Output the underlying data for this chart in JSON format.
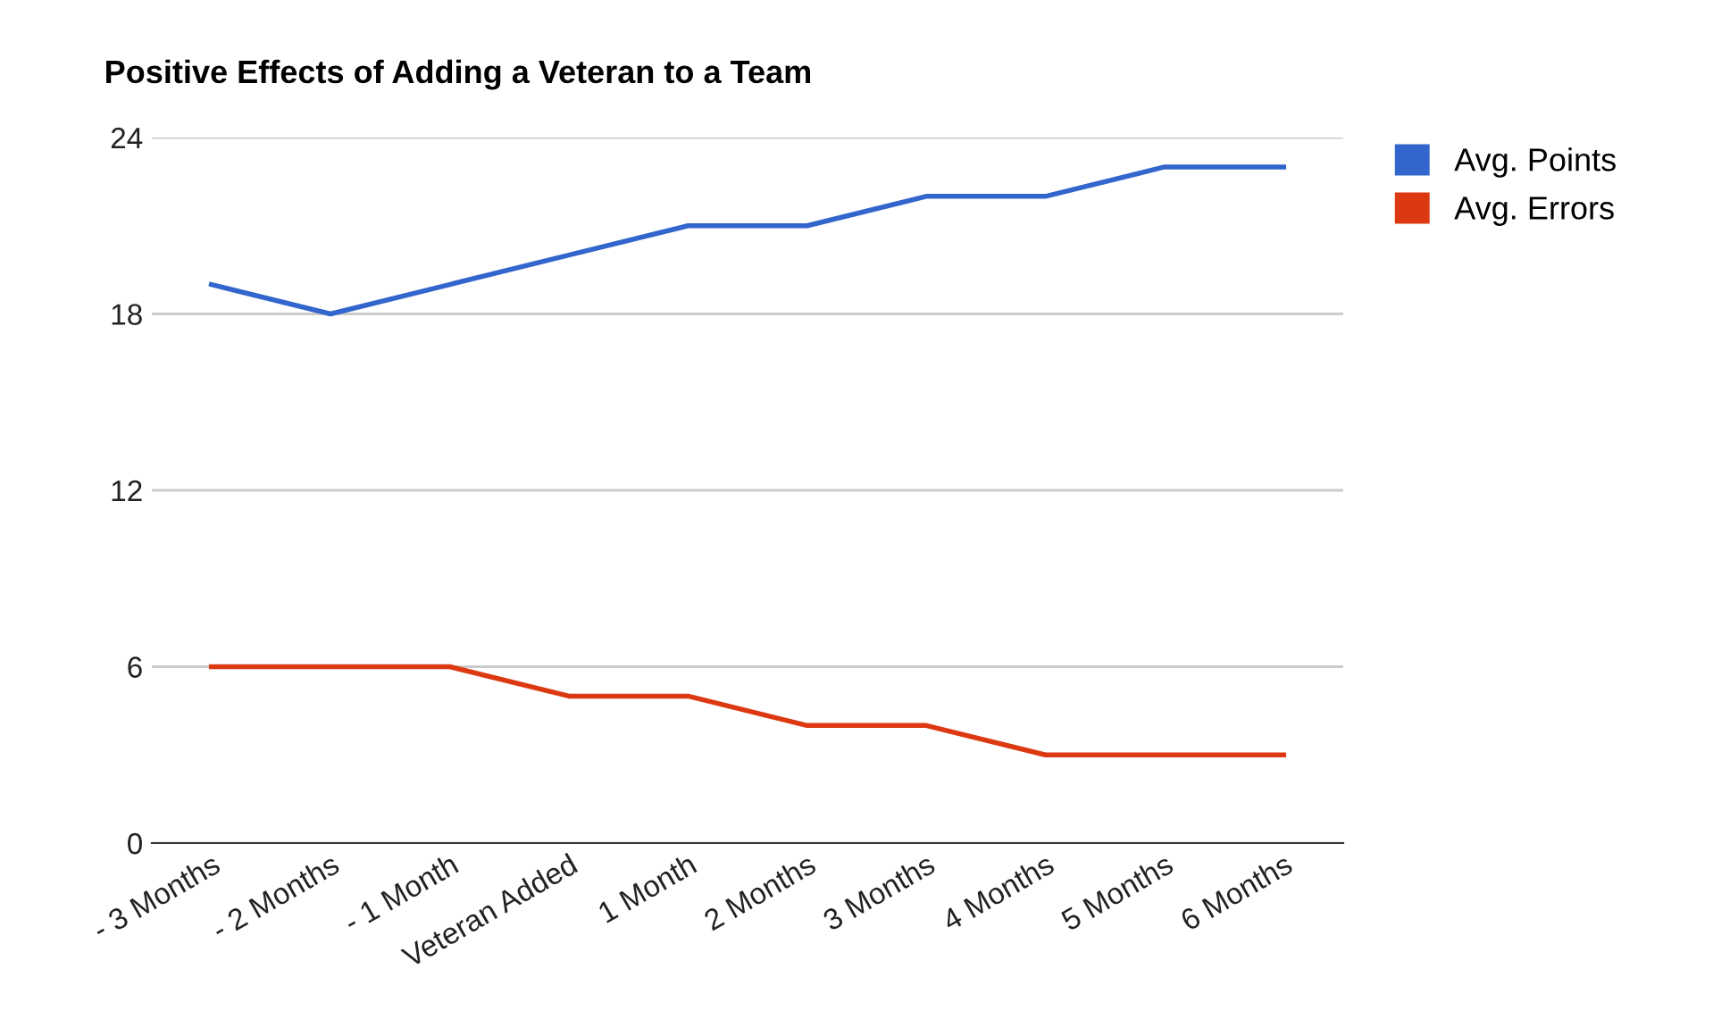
{
  "chart_data": {
    "type": "line",
    "title": "Positive Effects of Adding a Veteran to a Team",
    "categories": [
      "- 3 Months",
      "- 2 Months",
      "- 1 Month",
      "Veteran Added",
      "1 Month",
      "2 Months",
      "3 Months",
      "4 Months",
      "5 Months",
      "6 Months"
    ],
    "series": [
      {
        "name": "Avg. Points",
        "color": "#3366cc",
        "values": [
          19,
          18,
          19,
          20,
          21,
          21,
          22,
          22,
          23,
          23
        ]
      },
      {
        "name": "Avg. Errors",
        "color": "#dc3912",
        "values": [
          6,
          6,
          6,
          5,
          5,
          4,
          4,
          3,
          3,
          3
        ]
      }
    ],
    "ylim": [
      0,
      24
    ],
    "yticks": [
      0,
      6,
      12,
      18,
      24
    ],
    "grid": "y",
    "legend": "right",
    "marker": "none",
    "line_style": "solid"
  }
}
